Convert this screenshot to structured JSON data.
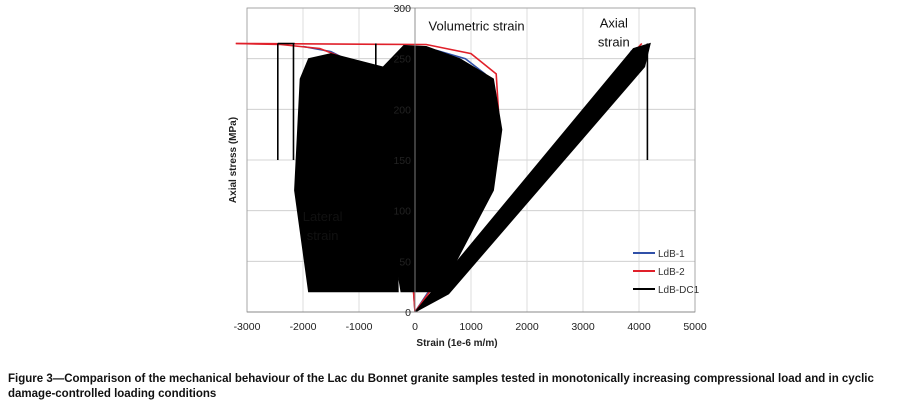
{
  "caption": "Figure 3—Comparison of the mechanical behaviour of the Lac du Bonnet granite samples tested in monotonically increasing compressional load and in cyclic damage-controlled loading conditions",
  "chart_data": {
    "type": "line",
    "xlabel": "Strain (1e-6 m/m)",
    "ylabel": "Axial stress (MPa)",
    "xlim": [
      -3000,
      5000
    ],
    "ylim": [
      0,
      300
    ],
    "xticks": [
      "-3000",
      "-2000",
      "-1000",
      "0",
      "1000",
      "2000",
      "3000",
      "4000",
      "5000"
    ],
    "yticks": [
      "0",
      "50",
      "100",
      "150",
      "200",
      "250",
      "300"
    ],
    "grid": true,
    "legend_position": "bottom-right",
    "annotations": [
      {
        "text": "Volumetric strain",
        "x": 1100,
        "y": 278
      },
      {
        "text": "Axial",
        "x": 3550,
        "y": 281
      },
      {
        "text": "strain",
        "x": 3550,
        "y": 262
      },
      {
        "text": "Lateral",
        "x": -1650,
        "y": 90
      },
      {
        "text": "strain",
        "x": -1650,
        "y": 71
      }
    ],
    "series": [
      {
        "name": "LdB-1",
        "color": "#3050a8",
        "curves": {
          "axial": [
            [
              0,
              0
            ],
            [
              500,
              18
            ],
            [
              1000,
              50
            ],
            [
              2000,
              112
            ],
            [
              3000,
              176
            ],
            [
              3870,
              258
            ]
          ],
          "volumetric": [
            [
              0,
              0
            ],
            [
              600,
              50
            ],
            [
              1100,
              120
            ],
            [
              1350,
              190
            ],
            [
              1250,
              235
            ],
            [
              900,
              250
            ],
            [
              400,
              258
            ],
            [
              -200,
              263
            ]
          ],
          "lateral": [
            [
              0,
              0
            ],
            [
              -100,
              80
            ],
            [
              -350,
              170
            ],
            [
              -900,
              240
            ],
            [
              -1500,
              257
            ],
            [
              -2000,
              262
            ]
          ]
        }
      },
      {
        "name": "LdB-2",
        "color": "#e0202a",
        "curves": {
          "axial": [
            [
              0,
              0
            ],
            [
              500,
              18
            ],
            [
              1000,
              50
            ],
            [
              2000,
              115
            ],
            [
              3000,
              180
            ],
            [
              4000,
              262
            ],
            [
              4050,
              265
            ]
          ],
          "volumetric": [
            [
              0,
              0
            ],
            [
              650,
              50
            ],
            [
              1200,
              120
            ],
            [
              1500,
              190
            ],
            [
              1450,
              235
            ],
            [
              1000,
              255
            ],
            [
              200,
              264
            ],
            [
              -3200,
              265
            ]
          ],
          "lateral": [
            [
              0,
              0
            ],
            [
              -120,
              90
            ],
            [
              -400,
              180
            ],
            [
              -1000,
              245
            ],
            [
              -1700,
              260
            ],
            [
              -2400,
              264
            ],
            [
              -3200,
              265
            ]
          ]
        }
      },
      {
        "name": "LdB-DC1",
        "color": "#000000",
        "curves": {
          "axial_envelope": [
            [
              0,
              0
            ],
            [
              600,
              18
            ],
            [
              4100,
              242
            ],
            [
              4200,
              265
            ],
            [
              3900,
              260
            ],
            [
              300,
              20
            ]
          ],
          "volumetric_envelope": [
            [
              -250,
              20
            ],
            [
              450,
              20
            ],
            [
              1400,
              120
            ],
            [
              1550,
              180
            ],
            [
              1400,
              230
            ],
            [
              800,
              250
            ],
            [
              200,
              262
            ],
            [
              -200,
              263
            ],
            [
              -600,
              240
            ],
            [
              -550,
              120
            ]
          ],
          "lateral_envelope": [
            [
              -2050,
              230
            ],
            [
              -1900,
              250
            ],
            [
              -1500,
              255
            ],
            [
              -450,
              240
            ],
            [
              -320,
              80
            ],
            [
              -300,
              20
            ],
            [
              -1900,
              20
            ],
            [
              -2150,
              120
            ]
          ],
          "verticals": [
            {
              "x": 4150,
              "y0": 150,
              "y1": 265
            },
            {
              "x": -2450,
              "y0": 150,
              "y1": 265
            },
            {
              "x": -2170,
              "y0": 150,
              "y1": 265
            },
            {
              "x": -700,
              "y0": 150,
              "y1": 265
            }
          ]
        }
      }
    ]
  }
}
